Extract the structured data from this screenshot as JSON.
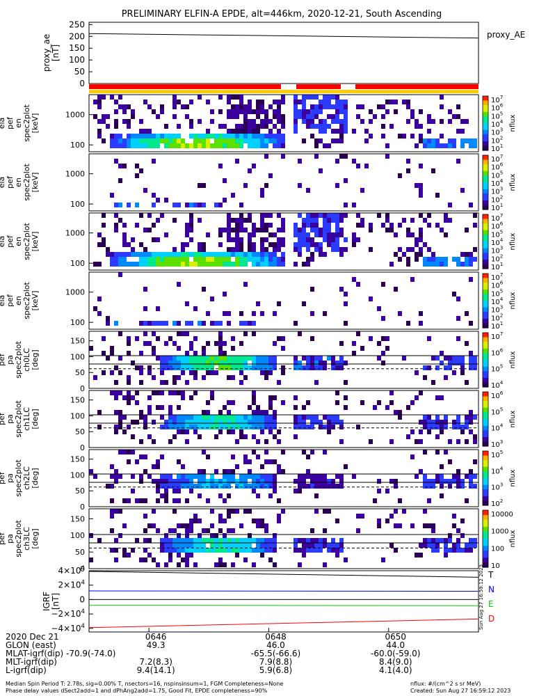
{
  "title": "PRELIMINARY ELFIN-A EPDE, alt=446km, 2020-12-21, South Ascending",
  "chart_data": [
    {
      "type": "line",
      "panel": "proxy_ae",
      "ylabel": [
        "proxy_ae",
        "[nT]"
      ],
      "legend": "proxy_AE",
      "yticks": [
        "250",
        "200",
        "150",
        "100",
        "50",
        "0"
      ],
      "ylim": [
        0,
        260
      ],
      "series": [
        {
          "name": "proxy_AE",
          "x": [
            "06:45:00",
            "06:51:30"
          ],
          "values": [
            212,
            193
          ]
        }
      ]
    },
    {
      "type": "heatmap",
      "panel": "pef_en_spec2plot_omni",
      "ylabel": [
        "ela",
        "pef",
        "en",
        "spec2plot",
        "[keV]"
      ],
      "yticks": [
        "1000",
        "100"
      ],
      "yscale": "log",
      "colorbar": {
        "label": "nflux",
        "ticks": [
          "10^7",
          "10^6",
          "10^5",
          "10^4",
          "10^3",
          "10^2",
          "10^1"
        ]
      },
      "flux_profile_log10": [
        [
          0.1,
          0.25
        ],
        [
          0.2,
          0.15
        ],
        [
          0.37,
          6.4
        ],
        [
          0.48,
          6.9
        ],
        [
          0.6,
          6.5
        ],
        [
          0.7,
          5.3
        ],
        [
          0.78,
          3.0
        ],
        [
          0.79,
          1.5
        ]
      ]
    },
    {
      "type": "heatmap",
      "panel": "pef_en_spec2plot_anti",
      "ylabel": [
        "ela",
        "pef",
        "en",
        "spec2plot",
        "[keV]"
      ],
      "yticks": [
        "1000",
        "100"
      ],
      "yscale": "log",
      "colorbar": {
        "label": "nflux",
        "ticks": [
          "10^7",
          "10^6",
          "10^5",
          "10^4",
          "10^3",
          "10^2",
          "10^1"
        ]
      }
    },
    {
      "type": "heatmap",
      "panel": "pef_en_spec2plot_perp",
      "ylabel": [
        "ela",
        "pef",
        "en",
        "spec2plot",
        "[keV]"
      ],
      "yticks": [
        "1000",
        "100"
      ],
      "yscale": "log",
      "colorbar": {
        "label": "nflux",
        "ticks": [
          "10^7",
          "10^6",
          "10^5",
          "10^4",
          "10^3",
          "10^2",
          "10^1"
        ]
      }
    },
    {
      "type": "heatmap",
      "panel": "pef_en_spec2plot_para",
      "ylabel": [
        "ela",
        "pef",
        "en",
        "spec2plot",
        "[keV]"
      ],
      "yticks": [
        "1000",
        "100"
      ],
      "yscale": "log",
      "colorbar": {
        "label": "nflux",
        "ticks": [
          "10^7",
          "10^6",
          "10^5",
          "10^4",
          "10^3",
          "10^2",
          "10^1"
        ]
      }
    },
    {
      "type": "heatmap",
      "panel": "pef_pa_spec2plot_ch0LC",
      "ylabel": [
        "ela",
        "pef",
        "pa",
        "spec2plot",
        "ch0LC",
        "[deg]"
      ],
      "yticks": [
        "150",
        "100",
        "50",
        "0"
      ],
      "ylim": [
        0,
        180
      ],
      "colorbar": {
        "label": "nflux",
        "ticks": [
          "10^7",
          "10^6",
          "10^5",
          "10^4"
        ]
      }
    },
    {
      "type": "heatmap",
      "panel": "pef_pa_spec2plot_ch1LC",
      "ylabel": [
        "ela",
        "pef",
        "pa",
        "spec2plot",
        "ch1LC",
        "[deg]"
      ],
      "yticks": [
        "150",
        "100",
        "50",
        "0"
      ],
      "ylim": [
        0,
        180
      ],
      "colorbar": {
        "label": "nflux",
        "ticks": [
          "10^6",
          "10^5",
          "10^4",
          "10^3"
        ]
      }
    },
    {
      "type": "heatmap",
      "panel": "pef_pa_spec2plot_ch2LC",
      "ylabel": [
        "ela",
        "pef",
        "pa",
        "spec2plot",
        "ch2LC",
        "[deg]"
      ],
      "yticks": [
        "150",
        "100",
        "50",
        "0"
      ],
      "ylim": [
        0,
        180
      ],
      "colorbar": {
        "label": "nflux",
        "ticks": [
          "10^5",
          "10^4",
          "10^3",
          "10^2"
        ]
      }
    },
    {
      "type": "heatmap",
      "panel": "pef_pa_spec2plot_ch3LC",
      "ylabel": [
        "ela",
        "pef",
        "pa",
        "spec2plot",
        "ch3LC",
        "[deg]"
      ],
      "yticks": [
        "150",
        "100",
        "50",
        "0"
      ],
      "ylim": [
        0,
        180
      ],
      "colorbar": {
        "label": "nflux",
        "ticks": [
          "10000",
          "1000",
          "100",
          "10"
        ]
      }
    },
    {
      "type": "line",
      "panel": "igrf",
      "ylabel": [
        "IGRF",
        "[nT]"
      ],
      "yticks": [
        "4×10^4",
        "2×10^4",
        "0",
        "−2×10^4",
        "−4×10^4"
      ],
      "ylim": [
        -45000,
        40000
      ],
      "series": [
        {
          "name": "T",
          "color": "#000000",
          "x": [
            "06:45:00",
            "06:51:30"
          ],
          "values": [
            39000,
            31000
          ]
        },
        {
          "name": "N",
          "color": "#0000ff",
          "x": [
            "06:45:00",
            "06:51:30"
          ],
          "values": [
            12000,
            11500
          ]
        },
        {
          "name": "E",
          "color": "#00cc00",
          "x": [
            "06:45:00",
            "06:51:30"
          ],
          "values": [
            -8000,
            -8500
          ]
        },
        {
          "name": "D",
          "color": "#ff0000",
          "x": [
            "06:45:00",
            "06:51:30"
          ],
          "values": [
            -39000,
            -27000
          ]
        }
      ]
    }
  ],
  "x_axis": {
    "ticks": [
      "0646",
      "0648",
      "0650"
    ],
    "rows": [
      {
        "label": "2020 Dec 21",
        "values": [
          "0646",
          "0648",
          "0650"
        ]
      },
      {
        "label": "GLON (east)",
        "values": [
          "49.3",
          "46.0",
          "44.0"
        ]
      },
      {
        "label": "MLAT-igrf(dip) -70.9(-74.0)",
        "values": [
          "",
          "-65.5(-66.6)",
          "-60.0(-59.0)"
        ]
      },
      {
        "label": "MLT-igrf(dip)",
        "values": [
          "7.2(8.3)",
          "7.9(8.8)",
          "8.4(9.0)"
        ]
      },
      {
        "label": "L-igrf(dip)",
        "values": [
          "9.4(14.1)",
          "5.9(6.8)",
          "4.1(4.0)"
        ]
      }
    ]
  },
  "vertical_stamp": "Sun Aug 27 16:59:12 2023",
  "footer": {
    "left_line1": "Median Spin Period T: 2.78s, sig=0.00% T, nsectors=16, nspinsinsum=1, FGM Completeness=None",
    "left_line2": "Phase delay values dSect2add=1 and dPhAng2add=1.75, Good Fit, EPDE completeness=90%",
    "right_line1": "nflux: #/(cm^2 s sr MeV)",
    "right_line2": "Created: Sun Aug 27 16:59:12 2023"
  },
  "colors": {
    "orbit_bar_red": "#ff0000",
    "orbit_bar_yellow": "#ffcc00"
  }
}
